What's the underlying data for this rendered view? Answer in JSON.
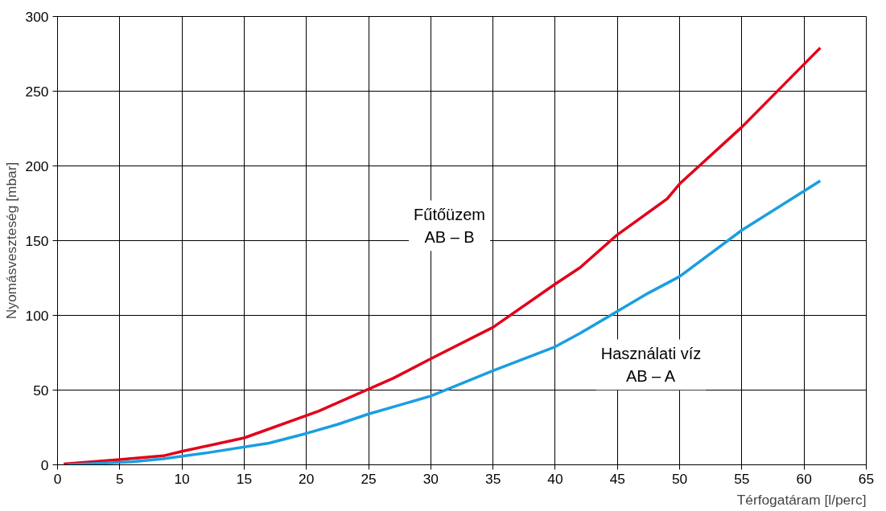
{
  "chart_data": {
    "type": "line",
    "xlabel": "Térfogatáram [l/perc]",
    "ylabel": "Nyomásveszteség [mbar]",
    "xlim": [
      0,
      65
    ],
    "ylim": [
      0,
      300
    ],
    "xticks": [
      0,
      5,
      10,
      15,
      20,
      25,
      30,
      35,
      40,
      45,
      50,
      55,
      60,
      65
    ],
    "yticks": [
      0,
      50,
      100,
      150,
      200,
      250,
      300
    ],
    "grid": true,
    "line_style": "solid",
    "marker": "none",
    "series": [
      {
        "color": "#e2001a",
        "x": [
          0.5,
          5,
          8.5,
          10,
          15,
          21,
          27,
          30,
          35,
          40,
          42,
          45,
          49,
          50,
          55,
          61.3
        ],
        "values": [
          0.5,
          3.5,
          6,
          9,
          18,
          36,
          58,
          71,
          92,
          121,
          132,
          154,
          178,
          188,
          226,
          279
        ]
      },
      {
        "color": "#1a9ee0",
        "x": [
          0.8,
          6,
          8.5,
          12,
          17,
          20,
          22.5,
          25,
          30,
          35,
          40,
          42,
          47.5,
          50,
          55,
          61.3
        ],
        "values": [
          0,
          2,
          4,
          8,
          14.5,
          21,
          27,
          34,
          46,
          63,
          79,
          88,
          115,
          126,
          157,
          190
        ]
      }
    ],
    "annotations": [
      "Fűtőüzem\nAB – B",
      "Használati víz\nAB – A"
    ]
  }
}
